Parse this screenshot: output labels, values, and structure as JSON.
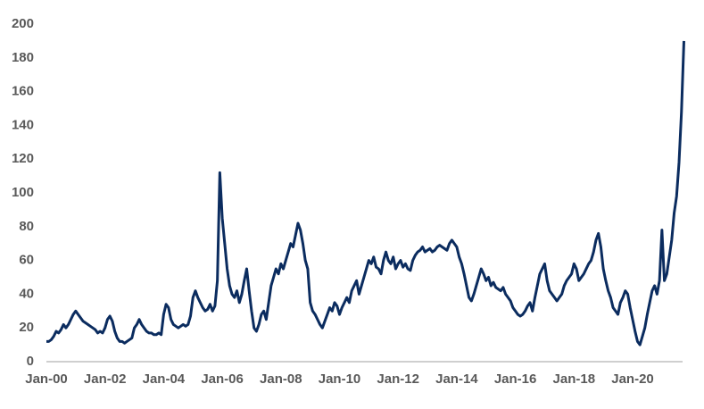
{
  "chart_data": {
    "type": "line",
    "categories": [
      "Jan-00",
      null,
      null,
      null,
      null,
      null,
      null,
      null,
      null,
      null,
      null,
      null,
      null,
      null,
      null,
      null,
      null,
      null,
      null,
      null,
      null,
      null,
      null,
      null,
      "Jan-02",
      null,
      null,
      null,
      null,
      null,
      null,
      null,
      null,
      null,
      null,
      null,
      null,
      null,
      null,
      null,
      null,
      null,
      null,
      null,
      null,
      null,
      null,
      null,
      "Jan-04",
      null,
      null,
      null,
      null,
      null,
      null,
      null,
      null,
      null,
      null,
      null,
      null,
      null,
      null,
      null,
      null,
      null,
      null,
      null,
      null,
      null,
      null,
      null,
      "Jan-06",
      null,
      null,
      null,
      null,
      null,
      null,
      null,
      null,
      null,
      null,
      null,
      null,
      null,
      null,
      null,
      null,
      null,
      null,
      null,
      null,
      null,
      null,
      null,
      "Jan-08",
      null,
      null,
      null,
      null,
      null,
      null,
      null,
      null,
      null,
      null,
      null,
      null,
      null,
      null,
      null,
      null,
      null,
      null,
      null,
      null,
      null,
      null,
      null,
      "Jan-10",
      null,
      null,
      null,
      null,
      null,
      null,
      null,
      null,
      null,
      null,
      null,
      null,
      null,
      null,
      null,
      null,
      null,
      null,
      null,
      null,
      null,
      null,
      null,
      "Jan-12",
      null,
      null,
      null,
      null,
      null,
      null,
      null,
      null,
      null,
      null,
      null,
      null,
      null,
      null,
      null,
      null,
      null,
      null,
      null,
      null,
      null,
      null,
      null,
      "Jan-14",
      null,
      null,
      null,
      null,
      null,
      null,
      null,
      null,
      null,
      null,
      null,
      null,
      null,
      null,
      null,
      null,
      null,
      null,
      null,
      null,
      null,
      null,
      null,
      "Jan-16",
      null,
      null,
      null,
      null,
      null,
      null,
      null,
      null,
      null,
      null,
      null,
      null,
      null,
      null,
      null,
      null,
      null,
      null,
      null,
      null,
      null,
      null,
      null,
      "Jan-18",
      null,
      null,
      null,
      null,
      null,
      null,
      null,
      null,
      null,
      null,
      null,
      null,
      null,
      null,
      null,
      null,
      null,
      null,
      null,
      null,
      null,
      null,
      null,
      "Jan-20",
      null,
      null,
      null,
      null,
      null,
      null,
      null,
      null,
      null,
      null,
      null,
      null,
      null,
      null,
      null,
      null,
      null,
      null,
      null,
      null,
      null
    ],
    "series": [
      {
        "color": "#0b2c5f",
        "values": [
          12,
          12,
          13,
          15,
          18,
          17,
          19,
          22,
          20,
          22,
          25,
          28,
          30,
          28,
          26,
          24,
          23,
          22,
          21,
          20,
          19,
          17,
          18,
          17,
          20,
          25,
          27,
          24,
          18,
          14,
          12,
          12,
          11,
          12,
          13,
          14,
          20,
          22,
          25,
          22,
          20,
          18,
          17,
          17,
          16,
          16,
          17,
          16,
          28,
          34,
          32,
          25,
          22,
          21,
          20,
          21,
          22,
          21,
          22,
          27,
          38,
          42,
          38,
          35,
          32,
          30,
          31,
          34,
          30,
          33,
          48,
          112,
          85,
          70,
          55,
          45,
          40,
          38,
          42,
          35,
          40,
          48,
          55,
          42,
          30,
          20,
          18,
          22,
          28,
          30,
          25,
          35,
          45,
          50,
          55,
          52,
          58,
          55,
          60,
          65,
          70,
          68,
          75,
          82,
          78,
          70,
          60,
          55,
          35,
          30,
          28,
          25,
          22,
          20,
          24,
          28,
          32,
          30,
          35,
          33,
          28,
          32,
          35,
          38,
          35,
          42,
          45,
          48,
          40,
          45,
          50,
          55,
          60,
          58,
          62,
          56,
          55,
          52,
          60,
          65,
          60,
          58,
          62,
          55,
          58,
          60,
          56,
          58,
          55,
          54,
          60,
          63,
          65,
          66,
          68,
          65,
          66,
          67,
          65,
          66,
          68,
          69,
          68,
          67,
          66,
          70,
          72,
          70,
          68,
          62,
          58,
          52,
          45,
          38,
          36,
          40,
          45,
          50,
          55,
          52,
          48,
          50,
          45,
          47,
          44,
          43,
          42,
          44,
          40,
          38,
          36,
          32,
          30,
          28,
          27,
          28,
          30,
          33,
          35,
          30,
          38,
          45,
          52,
          55,
          58,
          48,
          42,
          40,
          38,
          36,
          38,
          40,
          45,
          48,
          50,
          52,
          58,
          55,
          48,
          50,
          52,
          55,
          58,
          60,
          65,
          72,
          76,
          68,
          55,
          48,
          42,
          38,
          32,
          30,
          28,
          35,
          38,
          42,
          40,
          32,
          25,
          18,
          12,
          10,
          15,
          20,
          28,
          35,
          42,
          45,
          40,
          48,
          78,
          48,
          52,
          62,
          72,
          88,
          98,
          118,
          148,
          190
        ]
      }
    ],
    "ylim": [
      0,
      200
    ],
    "yticks": [
      0,
      20,
      40,
      60,
      80,
      100,
      120,
      140,
      160,
      180,
      200
    ]
  }
}
